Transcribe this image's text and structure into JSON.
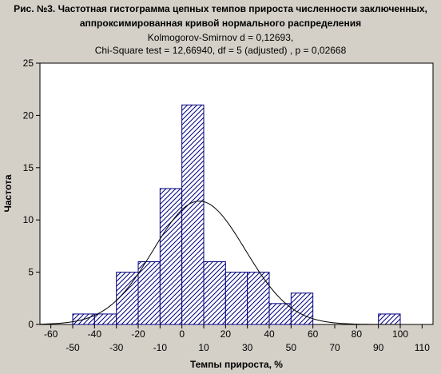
{
  "chart_data": {
    "type": "bar",
    "title": "Рис. №3. Частотная гистограмма цепных темпов прироста численности заключенных,",
    "title_line2": "аппроксимированная кривой нормального распределения",
    "subtitle_line1": "Kolmogorov-Smirnov d = 0,12693,",
    "subtitle_line2": "Chi-Square test = 12,66940, df = 5 (adjusted) , p = 0,02668",
    "xlabel": "Темпы прироста, %",
    "ylabel": "Частота",
    "xlim": [
      -65,
      115
    ],
    "ylim": [
      0,
      25
    ],
    "y_ticks": [
      0,
      5,
      10,
      15,
      20,
      25
    ],
    "x_ticks_upper": [
      -60,
      -40,
      -20,
      0,
      20,
      40,
      60,
      80,
      100
    ],
    "x_ticks_lower": [
      -50,
      -30,
      -10,
      10,
      30,
      50,
      70,
      90,
      110
    ],
    "bin_width": 10,
    "bins": [
      {
        "x0": -50,
        "x1": -40,
        "value": 1
      },
      {
        "x0": -40,
        "x1": -30,
        "value": 1
      },
      {
        "x0": -30,
        "x1": -20,
        "value": 5
      },
      {
        "x0": -20,
        "x1": -10,
        "value": 6
      },
      {
        "x0": -10,
        "x1": 0,
        "value": 13
      },
      {
        "x0": 0,
        "x1": 10,
        "value": 21
      },
      {
        "x0": 10,
        "x1": 20,
        "value": 6
      },
      {
        "x0": 20,
        "x1": 30,
        "value": 5
      },
      {
        "x0": 30,
        "x1": 40,
        "value": 5
      },
      {
        "x0": 40,
        "x1": 50,
        "value": 2
      },
      {
        "x0": 50,
        "x1": 60,
        "value": 3
      },
      {
        "x0": 60,
        "x1": 70,
        "value": 0
      },
      {
        "x0": 70,
        "x1": 80,
        "value": 0
      },
      {
        "x0": 80,
        "x1": 90,
        "value": 0
      },
      {
        "x0": 90,
        "x1": 100,
        "value": 1
      }
    ],
    "normal_curve": {
      "mean": 8,
      "sd": 21,
      "peak": 11.8
    },
    "grid": false,
    "colors": {
      "background": "#d4d0c8",
      "plot_bg": "#ffffff",
      "bar_stroke": "#00007f",
      "hatch": "#00007f",
      "curve": "#000000"
    }
  }
}
